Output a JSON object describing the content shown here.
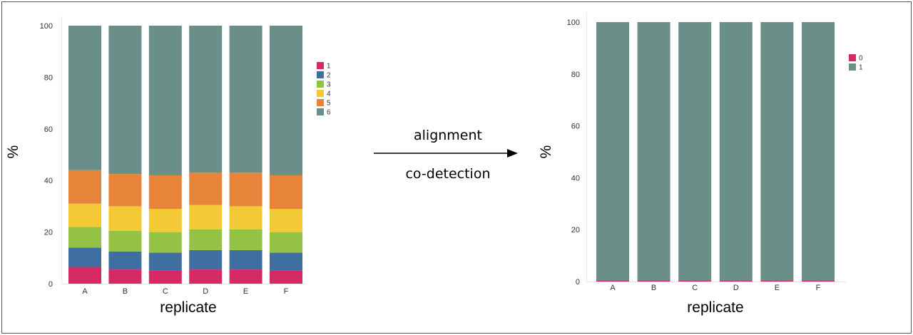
{
  "chart_data": [
    {
      "type": "bar",
      "stacked": true,
      "categories": [
        "A",
        "B",
        "C",
        "D",
        "E",
        "F"
      ],
      "series": [
        {
          "name": "1",
          "color": "#d62a64",
          "values": [
            6.5,
            5.5,
            5.0,
            5.5,
            5.5,
            5.0
          ]
        },
        {
          "name": "2",
          "color": "#3f6fa0",
          "values": [
            7.5,
            7.0,
            7.0,
            7.5,
            7.5,
            7.0
          ]
        },
        {
          "name": "3",
          "color": "#93c245",
          "values": [
            8.0,
            8.0,
            8.0,
            8.0,
            8.0,
            8.0
          ]
        },
        {
          "name": "4",
          "color": "#f3c935",
          "values": [
            9.0,
            9.5,
            9.0,
            9.5,
            9.0,
            9.0
          ]
        },
        {
          "name": "5",
          "color": "#e8843a",
          "values": [
            13.0,
            12.5,
            13.0,
            12.5,
            13.0,
            13.0
          ]
        },
        {
          "name": "6",
          "color": "#6a8f89",
          "values": [
            56.0,
            57.5,
            58.0,
            57.0,
            57.0,
            58.0
          ]
        }
      ],
      "xlabel": "replicate",
      "ylabel": "%",
      "ylim": [
        0,
        100
      ],
      "yticks": [
        0,
        20,
        40,
        60,
        80,
        100
      ],
      "legend": "right"
    },
    {
      "type": "bar",
      "stacked": true,
      "categories": [
        "A",
        "B",
        "C",
        "D",
        "E",
        "F"
      ],
      "series": [
        {
          "name": "0",
          "color": "#d62a64",
          "values": [
            0.5,
            0.5,
            0.5,
            0.5,
            0.5,
            0.5
          ]
        },
        {
          "name": "1",
          "color": "#6a8f89",
          "values": [
            99.5,
            99.5,
            99.5,
            99.5,
            99.5,
            99.5
          ]
        }
      ],
      "xlabel": "replicate",
      "ylabel": "%",
      "ylim": [
        0,
        100
      ],
      "yticks": [
        0,
        20,
        40,
        60,
        80,
        100
      ],
      "legend": "top-right"
    }
  ],
  "arrow": {
    "top_label": "alignment",
    "bottom_label": "co-detection"
  }
}
